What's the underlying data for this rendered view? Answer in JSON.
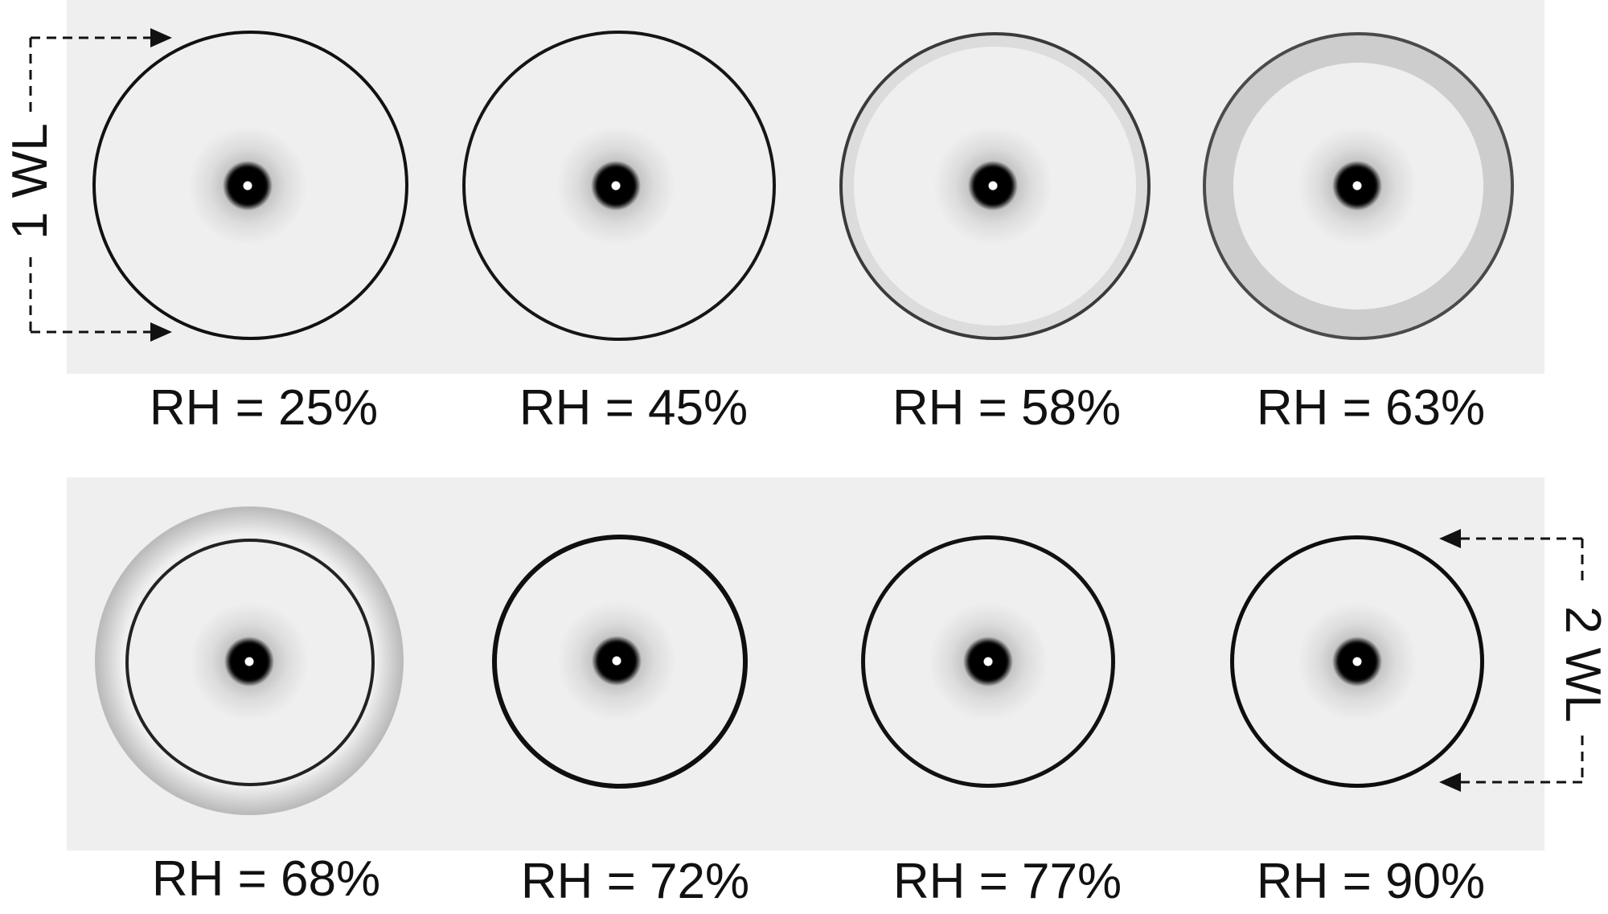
{
  "frames": [
    {
      "label": "RH = 25%"
    },
    {
      "label": "RH = 45%"
    },
    {
      "label": "RH = 58%"
    },
    {
      "label": "RH = 63%"
    },
    {
      "label": "RH = 68%"
    },
    {
      "label": "RH = 72%"
    },
    {
      "label": "RH = 77%"
    },
    {
      "label": "RH = 90%"
    }
  ],
  "scale_bars": {
    "top": "1 WL",
    "bottom": "2 WL"
  },
  "colors": {
    "panel_background": "#efefef",
    "ring": "#111111"
  }
}
